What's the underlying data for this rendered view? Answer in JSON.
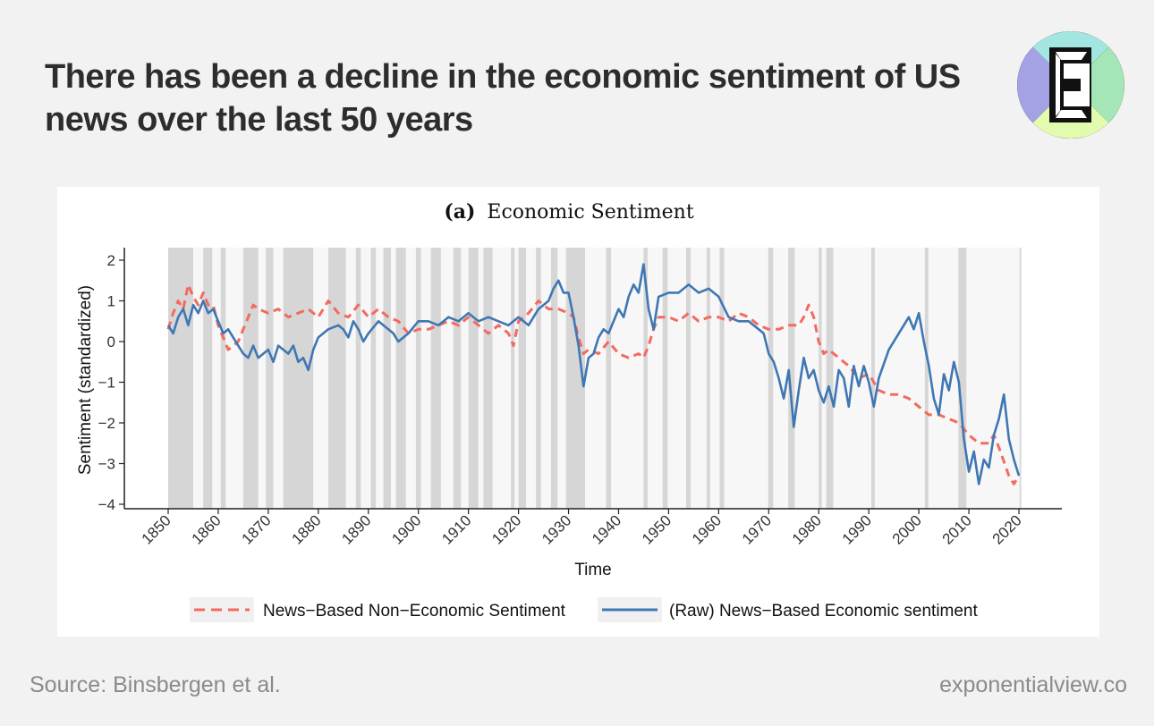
{
  "headline": "There has been a decline in the economic sentiment of US news over the last 50 years",
  "footer": {
    "source": "Source: Binsbergen et al.",
    "site": "exponentialview.co"
  },
  "logo": {
    "letter": "E",
    "icon": "exponential-view-logo",
    "colors": [
      "#a5a1e5",
      "#a3e5e0",
      "#a4e6b6",
      "#e3fbaf"
    ]
  },
  "chart_data": {
    "type": "line",
    "panel_label": "(a)",
    "title": "Economic Sentiment",
    "xlabel": "Time",
    "ylabel": "Sentiment (standardized)",
    "xlim": [
      1850,
      2020
    ],
    "ylim": [
      -4.1,
      2.3
    ],
    "x_ticks": [
      1850,
      1860,
      1870,
      1880,
      1890,
      1900,
      1910,
      1920,
      1930,
      1940,
      1950,
      1960,
      1970,
      1980,
      1990,
      2000,
      2010,
      2020
    ],
    "y_ticks": [
      2,
      1,
      0,
      -1,
      -2,
      -3,
      -4
    ],
    "legend_position": "bottom",
    "recessions": [
      [
        1850.0,
        1855.0
      ],
      [
        1857.0,
        1858.8
      ],
      [
        1860.5,
        1861.5
      ],
      [
        1865.0,
        1868.0
      ],
      [
        1869.5,
        1871.0
      ],
      [
        1873.0,
        1879.0
      ],
      [
        1882.0,
        1885.5
      ],
      [
        1887.5,
        1888.5
      ],
      [
        1890.5,
        1891.5
      ],
      [
        1893.0,
        1894.5
      ],
      [
        1895.5,
        1897.5
      ],
      [
        1899.5,
        1900.5
      ],
      [
        1902.5,
        1904.5
      ],
      [
        1907.0,
        1908.5
      ],
      [
        1910.0,
        1912.0
      ],
      [
        1913.0,
        1914.8
      ],
      [
        1918.5,
        1919.2
      ],
      [
        1920.0,
        1921.5
      ],
      [
        1923.5,
        1924.5
      ],
      [
        1926.5,
        1927.8
      ],
      [
        1929.5,
        1933.3
      ],
      [
        1937.5,
        1938.5
      ],
      [
        1945.0,
        1945.8
      ],
      [
        1948.8,
        1949.8
      ],
      [
        1953.5,
        1954.4
      ],
      [
        1957.6,
        1958.3
      ],
      [
        1960.2,
        1961.1
      ],
      [
        1969.9,
        1970.9
      ],
      [
        1973.9,
        1975.2
      ],
      [
        1980.0,
        1980.6
      ],
      [
        1981.5,
        1982.9
      ],
      [
        1990.5,
        1991.2
      ],
      [
        2001.2,
        2001.9
      ],
      [
        2007.9,
        2009.5
      ],
      [
        2020.1,
        2020.4
      ]
    ],
    "series": [
      {
        "name": "News−Based Non−Economic Sentiment",
        "color": "#f26b61",
        "style": "dashed",
        "points": [
          [
            1850,
            0.3
          ],
          [
            1851,
            0.7
          ],
          [
            1852,
            1.0
          ],
          [
            1853,
            0.8
          ],
          [
            1854,
            1.4
          ],
          [
            1855,
            1.1
          ],
          [
            1856,
            0.9
          ],
          [
            1857,
            1.2
          ],
          [
            1858,
            0.9
          ],
          [
            1859,
            0.9
          ],
          [
            1860,
            0.4
          ],
          [
            1861,
            0.1
          ],
          [
            1862,
            -0.2
          ],
          [
            1863,
            -0.1
          ],
          [
            1864,
            0.0
          ],
          [
            1865,
            0.3
          ],
          [
            1866,
            0.6
          ],
          [
            1867,
            0.9
          ],
          [
            1868,
            0.8
          ],
          [
            1870,
            0.7
          ],
          [
            1872,
            0.8
          ],
          [
            1874,
            0.6
          ],
          [
            1876,
            0.7
          ],
          [
            1878,
            0.8
          ],
          [
            1880,
            0.6
          ],
          [
            1882,
            1.0
          ],
          [
            1884,
            0.7
          ],
          [
            1886,
            0.6
          ],
          [
            1888,
            0.9
          ],
          [
            1890,
            0.6
          ],
          [
            1892,
            0.8
          ],
          [
            1894,
            0.6
          ],
          [
            1896,
            0.5
          ],
          [
            1898,
            0.2
          ],
          [
            1900,
            0.3
          ],
          [
            1902,
            0.3
          ],
          [
            1904,
            0.4
          ],
          [
            1906,
            0.5
          ],
          [
            1908,
            0.4
          ],
          [
            1910,
            0.6
          ],
          [
            1912,
            0.4
          ],
          [
            1914,
            0.2
          ],
          [
            1916,
            0.4
          ],
          [
            1918,
            0.2
          ],
          [
            1919,
            -0.1
          ],
          [
            1920,
            0.5
          ],
          [
            1922,
            0.7
          ],
          [
            1924,
            1.0
          ],
          [
            1926,
            0.8
          ],
          [
            1928,
            0.8
          ],
          [
            1930,
            0.7
          ],
          [
            1931,
            0.6
          ],
          [
            1932,
            0.1
          ],
          [
            1933,
            -0.3
          ],
          [
            1934,
            -0.2
          ],
          [
            1936,
            -0.3
          ],
          [
            1938,
            0.0
          ],
          [
            1940,
            -0.3
          ],
          [
            1942,
            -0.4
          ],
          [
            1944,
            -0.3
          ],
          [
            1945,
            -0.4
          ],
          [
            1946,
            -0.1
          ],
          [
            1947,
            0.3
          ],
          [
            1948,
            0.6
          ],
          [
            1950,
            0.6
          ],
          [
            1952,
            0.5
          ],
          [
            1954,
            0.7
          ],
          [
            1956,
            0.5
          ],
          [
            1958,
            0.6
          ],
          [
            1960,
            0.6
          ],
          [
            1962,
            0.5
          ],
          [
            1964,
            0.7
          ],
          [
            1966,
            0.6
          ],
          [
            1968,
            0.4
          ],
          [
            1970,
            0.3
          ],
          [
            1972,
            0.3
          ],
          [
            1974,
            0.4
          ],
          [
            1976,
            0.4
          ],
          [
            1977,
            0.6
          ],
          [
            1978,
            0.9
          ],
          [
            1979,
            0.6
          ],
          [
            1980,
            0.0
          ],
          [
            1981,
            -0.3
          ],
          [
            1982,
            -0.2
          ],
          [
            1984,
            -0.4
          ],
          [
            1986,
            -0.6
          ],
          [
            1988,
            -0.9
          ],
          [
            1990,
            -0.8
          ],
          [
            1992,
            -1.2
          ],
          [
            1994,
            -1.3
          ],
          [
            1996,
            -1.3
          ],
          [
            1998,
            -1.4
          ],
          [
            2000,
            -1.6
          ],
          [
            2002,
            -1.8
          ],
          [
            2004,
            -1.8
          ],
          [
            2006,
            -1.9
          ],
          [
            2008,
            -2.0
          ],
          [
            2010,
            -2.3
          ],
          [
            2012,
            -2.5
          ],
          [
            2014,
            -2.5
          ],
          [
            2015,
            -2.3
          ],
          [
            2016,
            -2.6
          ],
          [
            2018,
            -3.3
          ],
          [
            2019,
            -3.5
          ],
          [
            2020,
            -3.3
          ]
        ]
      },
      {
        "name": "(Raw) News−Based Economic sentiment",
        "color": "#3f77b3",
        "style": "solid",
        "points": [
          [
            1850,
            0.4
          ],
          [
            1851,
            0.2
          ],
          [
            1852,
            0.6
          ],
          [
            1853,
            0.8
          ],
          [
            1854,
            0.4
          ],
          [
            1855,
            0.9
          ],
          [
            1856,
            0.7
          ],
          [
            1857,
            1.0
          ],
          [
            1858,
            0.7
          ],
          [
            1859,
            0.8
          ],
          [
            1860,
            0.5
          ],
          [
            1861,
            0.2
          ],
          [
            1862,
            0.3
          ],
          [
            1863,
            0.1
          ],
          [
            1864,
            -0.1
          ],
          [
            1865,
            -0.3
          ],
          [
            1866,
            -0.4
          ],
          [
            1867,
            -0.1
          ],
          [
            1868,
            -0.4
          ],
          [
            1869,
            -0.3
          ],
          [
            1870,
            -0.2
          ],
          [
            1871,
            -0.5
          ],
          [
            1872,
            -0.1
          ],
          [
            1873,
            -0.2
          ],
          [
            1874,
            -0.3
          ],
          [
            1875,
            -0.1
          ],
          [
            1876,
            -0.5
          ],
          [
            1877,
            -0.4
          ],
          [
            1878,
            -0.7
          ],
          [
            1879,
            -0.2
          ],
          [
            1880,
            0.1
          ],
          [
            1882,
            0.3
          ],
          [
            1884,
            0.4
          ],
          [
            1885,
            0.3
          ],
          [
            1886,
            0.1
          ],
          [
            1887,
            0.5
          ],
          [
            1888,
            0.3
          ],
          [
            1889,
            0.0
          ],
          [
            1890,
            0.2
          ],
          [
            1892,
            0.5
          ],
          [
            1894,
            0.3
          ],
          [
            1895,
            0.2
          ],
          [
            1896,
            0.0
          ],
          [
            1898,
            0.2
          ],
          [
            1900,
            0.5
          ],
          [
            1902,
            0.5
          ],
          [
            1904,
            0.4
          ],
          [
            1906,
            0.6
          ],
          [
            1908,
            0.5
          ],
          [
            1910,
            0.7
          ],
          [
            1912,
            0.5
          ],
          [
            1914,
            0.6
          ],
          [
            1916,
            0.5
          ],
          [
            1918,
            0.4
          ],
          [
            1920,
            0.6
          ],
          [
            1922,
            0.4
          ],
          [
            1924,
            0.8
          ],
          [
            1925,
            0.9
          ],
          [
            1926,
            1.0
          ],
          [
            1927,
            1.3
          ],
          [
            1928,
            1.5
          ],
          [
            1929,
            1.2
          ],
          [
            1930,
            1.2
          ],
          [
            1931,
            0.6
          ],
          [
            1932,
            -0.1
          ],
          [
            1933,
            -1.1
          ],
          [
            1934,
            -0.4
          ],
          [
            1935,
            -0.3
          ],
          [
            1936,
            0.1
          ],
          [
            1937,
            0.3
          ],
          [
            1938,
            0.2
          ],
          [
            1939,
            0.5
          ],
          [
            1940,
            0.8
          ],
          [
            1941,
            0.6
          ],
          [
            1942,
            1.1
          ],
          [
            1943,
            1.4
          ],
          [
            1944,
            1.2
          ],
          [
            1945,
            1.9
          ],
          [
            1946,
            0.8
          ],
          [
            1947,
            0.3
          ],
          [
            1948,
            1.1
          ],
          [
            1950,
            1.2
          ],
          [
            1952,
            1.2
          ],
          [
            1954,
            1.4
          ],
          [
            1956,
            1.2
          ],
          [
            1958,
            1.3
          ],
          [
            1960,
            1.1
          ],
          [
            1962,
            0.6
          ],
          [
            1964,
            0.5
          ],
          [
            1966,
            0.5
          ],
          [
            1968,
            0.3
          ],
          [
            1969,
            0.2
          ],
          [
            1970,
            -0.3
          ],
          [
            1971,
            -0.5
          ],
          [
            1972,
            -0.9
          ],
          [
            1973,
            -1.4
          ],
          [
            1974,
            -0.7
          ],
          [
            1975,
            -2.1
          ],
          [
            1976,
            -1.2
          ],
          [
            1977,
            -0.4
          ],
          [
            1978,
            -0.9
          ],
          [
            1979,
            -0.7
          ],
          [
            1980,
            -1.2
          ],
          [
            1981,
            -1.5
          ],
          [
            1982,
            -1.1
          ],
          [
            1983,
            -1.6
          ],
          [
            1984,
            -0.7
          ],
          [
            1985,
            -0.9
          ],
          [
            1986,
            -1.6
          ],
          [
            1987,
            -0.6
          ],
          [
            1988,
            -1.1
          ],
          [
            1989,
            -0.6
          ],
          [
            1990,
            -1.0
          ],
          [
            1991,
            -1.6
          ],
          [
            1992,
            -0.9
          ],
          [
            1994,
            -0.2
          ],
          [
            1996,
            0.2
          ],
          [
            1998,
            0.6
          ],
          [
            1999,
            0.3
          ],
          [
            2000,
            0.7
          ],
          [
            2001,
            0.0
          ],
          [
            2002,
            -0.6
          ],
          [
            2003,
            -1.4
          ],
          [
            2004,
            -1.8
          ],
          [
            2005,
            -0.8
          ],
          [
            2006,
            -1.2
          ],
          [
            2007,
            -0.5
          ],
          [
            2008,
            -1.0
          ],
          [
            2009,
            -2.4
          ],
          [
            2010,
            -3.2
          ],
          [
            2011,
            -2.7
          ],
          [
            2012,
            -3.5
          ],
          [
            2013,
            -2.9
          ],
          [
            2014,
            -3.1
          ],
          [
            2015,
            -2.3
          ],
          [
            2016,
            -1.9
          ],
          [
            2017,
            -1.3
          ],
          [
            2018,
            -2.4
          ],
          [
            2019,
            -2.9
          ],
          [
            2020,
            -3.3
          ]
        ]
      }
    ]
  }
}
